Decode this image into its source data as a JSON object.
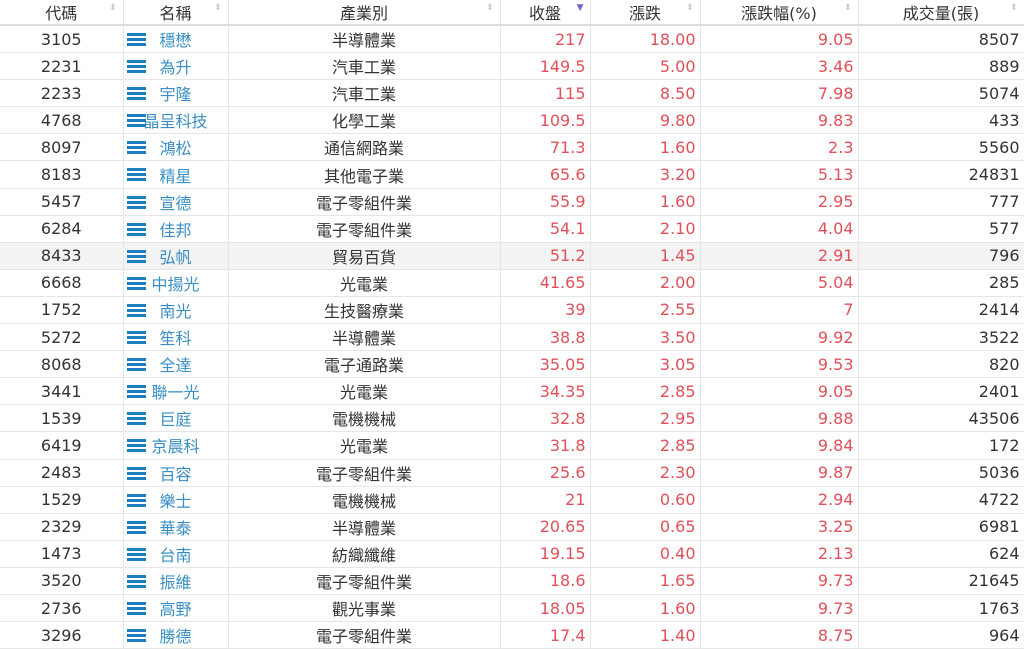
{
  "columns": [
    "代碼",
    "名稱",
    "產業別",
    "收盤",
    "漲跌",
    "漲跌幅(%)",
    "成交量(張)"
  ],
  "sorted_column": "收盤",
  "sort_direction": "descending",
  "colors": {
    "up": "#e0505a",
    "link": "#3a8fc4",
    "icon": "#1e7fc0"
  },
  "highlighted_row": "8433",
  "rows": [
    [
      "3105",
      "穩懋",
      "半導體業",
      "217",
      "18.00",
      "9.05",
      "8507"
    ],
    [
      "2231",
      "為升",
      "汽車工業",
      "149.5",
      "5.00",
      "3.46",
      "889"
    ],
    [
      "2233",
      "宇隆",
      "汽車工業",
      "115",
      "8.50",
      "7.98",
      "5074"
    ],
    [
      "4768",
      "晶呈科技",
      "化學工業",
      "109.5",
      "9.80",
      "9.83",
      "433"
    ],
    [
      "8097",
      "鴻松",
      "通信網路業",
      "71.3",
      "1.60",
      "2.3",
      "5560"
    ],
    [
      "8183",
      "精星",
      "其他電子業",
      "65.6",
      "3.20",
      "5.13",
      "24831"
    ],
    [
      "5457",
      "宣德",
      "電子零組件業",
      "55.9",
      "1.60",
      "2.95",
      "777"
    ],
    [
      "6284",
      "佳邦",
      "電子零組件業",
      "54.1",
      "2.10",
      "4.04",
      "577"
    ],
    [
      "8433",
      "弘帆",
      "貿易百貨",
      "51.2",
      "1.45",
      "2.91",
      "796"
    ],
    [
      "6668",
      "中揚光",
      "光電業",
      "41.65",
      "2.00",
      "5.04",
      "285"
    ],
    [
      "1752",
      "南光",
      "生技醫療業",
      "39",
      "2.55",
      "7",
      "2414"
    ],
    [
      "5272",
      "笙科",
      "半導體業",
      "38.8",
      "3.50",
      "9.92",
      "3522"
    ],
    [
      "8068",
      "全達",
      "電子通路業",
      "35.05",
      "3.05",
      "9.53",
      "820"
    ],
    [
      "3441",
      "聯一光",
      "光電業",
      "34.35",
      "2.85",
      "9.05",
      "2401"
    ],
    [
      "1539",
      "巨庭",
      "電機機械",
      "32.8",
      "2.95",
      "9.88",
      "43506"
    ],
    [
      "6419",
      "京晨科",
      "光電業",
      "31.8",
      "2.85",
      "9.84",
      "172"
    ],
    [
      "2483",
      "百容",
      "電子零組件業",
      "25.6",
      "2.30",
      "9.87",
      "5036"
    ],
    [
      "1529",
      "樂士",
      "電機機械",
      "21",
      "0.60",
      "2.94",
      "4722"
    ],
    [
      "2329",
      "華泰",
      "半導體業",
      "20.65",
      "0.65",
      "3.25",
      "6981"
    ],
    [
      "1473",
      "台南",
      "紡織纖維",
      "19.15",
      "0.40",
      "2.13",
      "624"
    ],
    [
      "3520",
      "振維",
      "電子零組件業",
      "18.6",
      "1.65",
      "9.73",
      "21645"
    ],
    [
      "2736",
      "高野",
      "觀光事業",
      "18.05",
      "1.60",
      "9.73",
      "1763"
    ],
    [
      "3296",
      "勝德",
      "電子零組件業",
      "17.4",
      "1.40",
      "8.75",
      "964"
    ]
  ]
}
